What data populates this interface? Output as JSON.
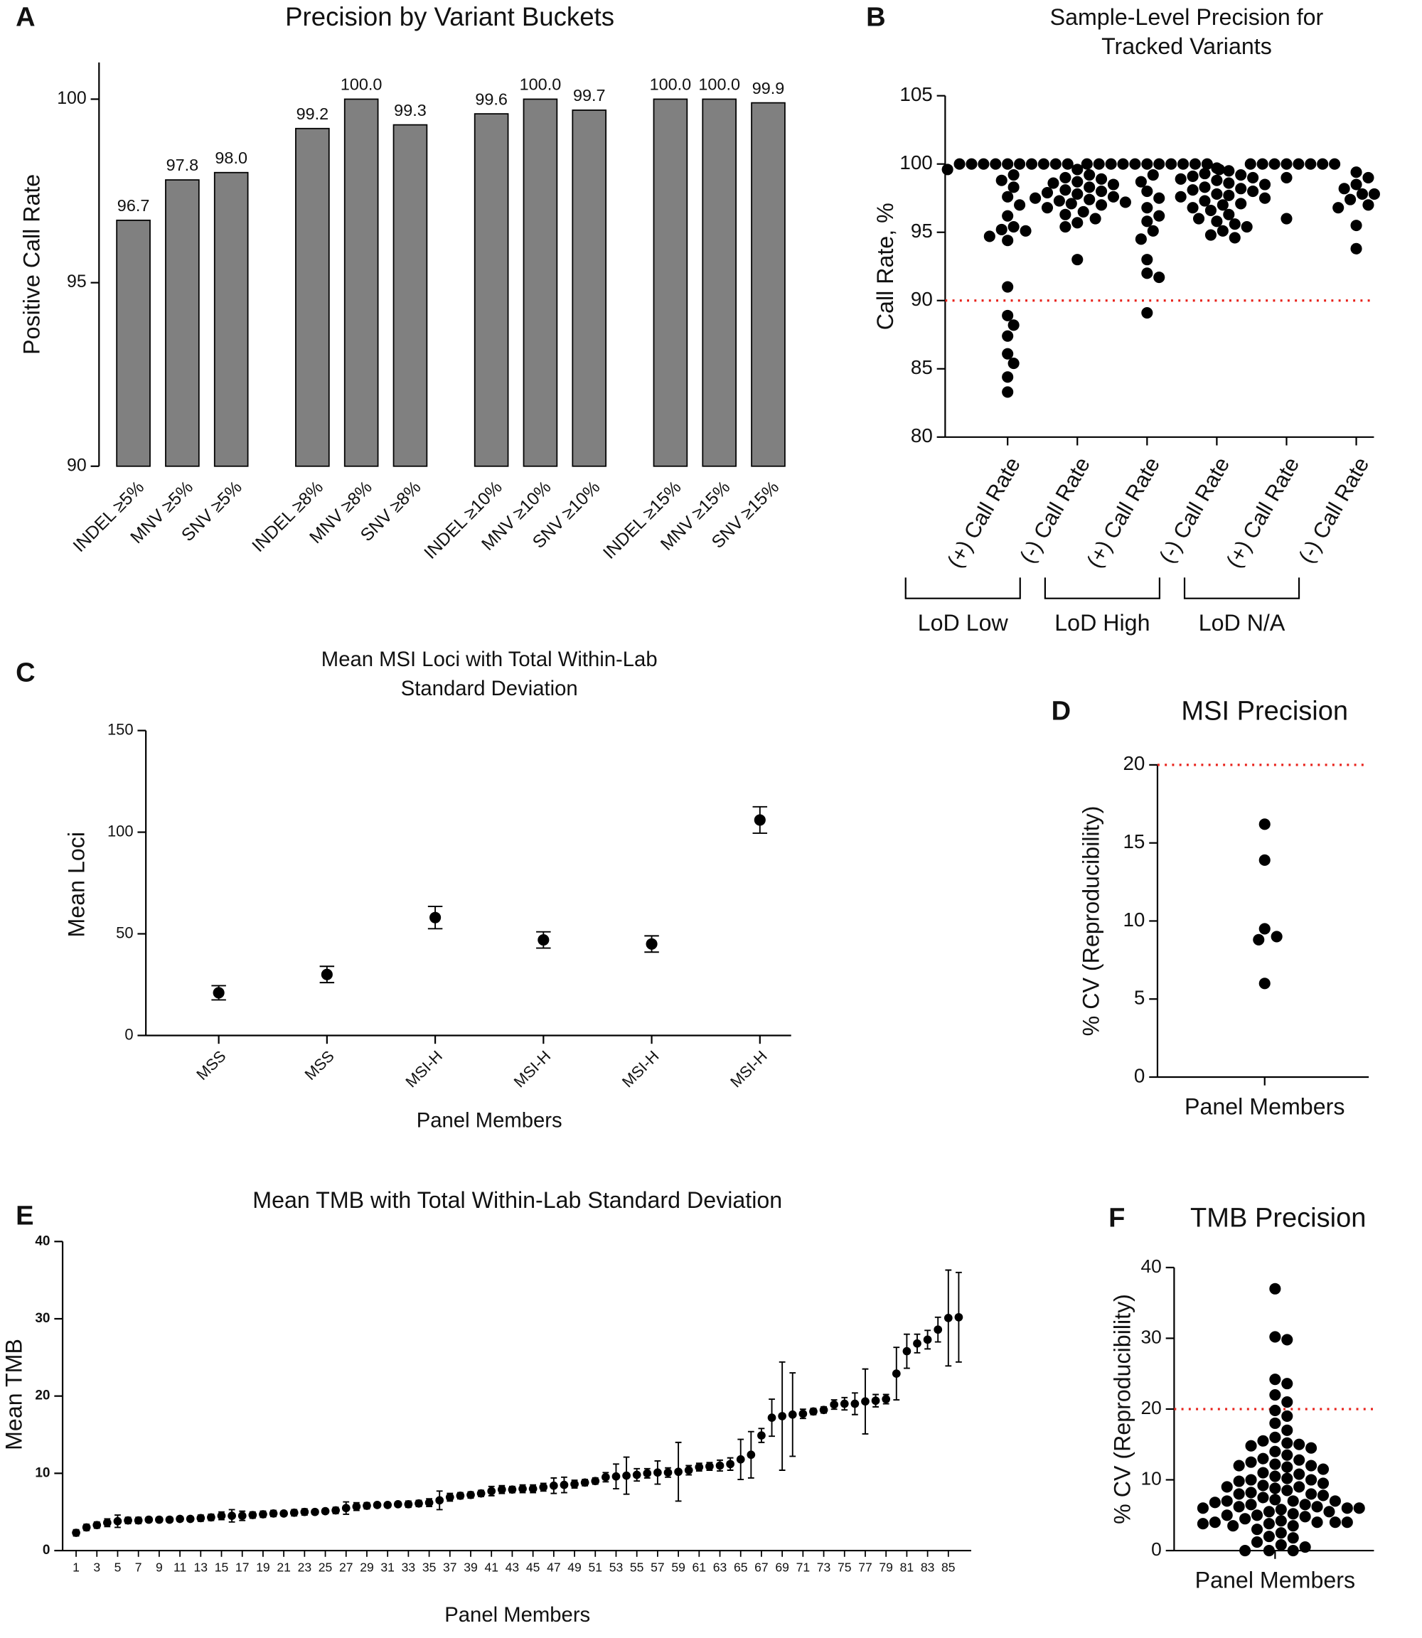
{
  "chart_data": [
    {
      "type": "bar",
      "panel": "A",
      "title": "Precision by Variant Buckets",
      "ylabel": "Positive Call  Rate",
      "categories": [
        "INDEL ≥5%",
        "MNV ≥5%",
        "SNV ≥5%",
        "INDEL ≥8%",
        "MNV ≥8%",
        "SNV ≥8%",
        "INDEL ≥10%",
        "MNV ≥10%",
        "SNV ≥10%",
        "INDEL ≥15%",
        "MNV ≥15%",
        "SNV ≥15%"
      ],
      "values": [
        96.7,
        97.8,
        98.0,
        99.2,
        100.0,
        99.3,
        99.6,
        100.0,
        99.7,
        100.0,
        100.0,
        99.9
      ],
      "value_labels": [
        "96.7",
        "97.8",
        "98.0",
        "99.2",
        "100.0",
        "99.3",
        "99.6",
        "100.0",
        "99.7",
        "100.0",
        "100.0",
        "99.9"
      ],
      "color": "#808080",
      "ylim": [
        90,
        101
      ],
      "yticks": [
        90,
        95,
        100
      ]
    },
    {
      "type": "strip",
      "panel": "B",
      "title": [
        "Sample-Level Precision for",
        "Tracked  Variants"
      ],
      "ylabel": "Call  Rate, %",
      "categories": [
        "(+) Call Rate",
        "(-) Call Rate",
        "(+) Call Rate",
        "(-) Call Rate",
        "(+) Call Rate",
        "(-) Call Rate"
      ],
      "groups": [
        "LoD Low",
        "LoD High",
        "LoD N/A"
      ],
      "values": [
        [
          100,
          100,
          100,
          100,
          100,
          100,
          100,
          100,
          100,
          100,
          99.6,
          99.2,
          98.8,
          98.3,
          97.6,
          97,
          96.2,
          95.4,
          95.2,
          95.1,
          94.7,
          94.4,
          91,
          88.9,
          88.2,
          87.4,
          86.1,
          85.4,
          84.4,
          83.3
        ],
        [
          99.6,
          99.2,
          99,
          98.9,
          98.7,
          98.6,
          98.5,
          98.3,
          98.1,
          98,
          97.9,
          97.8,
          97.6,
          97.5,
          97.4,
          97.3,
          97.2,
          97.1,
          97,
          96.8,
          96.5,
          96.3,
          96,
          95.7,
          95.4,
          93
        ],
        [
          100,
          100,
          100,
          100,
          100,
          100,
          100,
          100,
          100,
          100,
          100,
          99.6,
          99.2,
          98.7,
          98,
          97.5,
          96.8,
          96.2,
          95.8,
          95.1,
          94.5,
          93,
          92,
          91.7,
          89.1
        ],
        [
          99.7,
          99.5,
          99.3,
          99.2,
          99.1,
          99,
          98.9,
          98.8,
          98.6,
          98.5,
          98.3,
          98.2,
          98.1,
          98,
          97.8,
          97.7,
          97.6,
          97.5,
          97.3,
          97.1,
          97,
          96.8,
          96.6,
          96.3,
          96,
          95.8,
          95.6,
          95.4,
          95.1,
          94.8,
          94.6
        ],
        [
          100,
          100,
          100,
          100,
          100,
          100,
          100,
          100,
          99,
          96
        ],
        [
          99.4,
          99,
          98.5,
          98.2,
          97.8,
          97.8,
          97.4,
          97,
          96.8,
          95.5,
          93.8
        ]
      ],
      "color": "#000000",
      "hline": 90,
      "hline_color": "#e8221b",
      "ylim": [
        80,
        105
      ],
      "yticks": [
        80,
        85,
        90,
        95,
        100,
        105
      ]
    },
    {
      "type": "errorbar",
      "panel": "C",
      "title": [
        "Mean MSI Loci with Total Within-Lab",
        "Standard Deviation"
      ],
      "ylabel": "Mean Loci",
      "xlabel": "Panel Members",
      "categories": [
        "MSS",
        "MSS",
        "MSI-H",
        "MSI-H",
        "MSI-H",
        "MSI-H"
      ],
      "values": [
        21,
        30,
        58,
        47,
        45,
        106
      ],
      "errors": [
        3.5,
        4,
        5.5,
        4,
        4,
        6.5
      ],
      "color": "#000000",
      "ylim": [
        0,
        150
      ],
      "yticks": [
        0,
        50,
        100,
        150
      ]
    },
    {
      "type": "strip",
      "panel": "D",
      "title": "MSI Precision",
      "ylabel": "% CV (Reproducibility)",
      "categories": [
        "Panel Members"
      ],
      "values": [
        [
          16.2,
          13.9,
          9.5,
          9,
          8.8,
          6
        ]
      ],
      "color": "#000000",
      "hline": 20,
      "hline_color": "#e8221b",
      "ylim": [
        0,
        20
      ],
      "yticks": [
        0,
        5,
        10,
        15,
        20
      ]
    },
    {
      "type": "errorbar",
      "panel": "E",
      "title": "Mean TMB with Total Within-Lab Standard Deviation",
      "ylabel": "Mean TMB",
      "xlabel": "Panel Members",
      "x": [
        1,
        2,
        3,
        4,
        5,
        6,
        7,
        8,
        9,
        10,
        11,
        12,
        13,
        14,
        15,
        16,
        17,
        18,
        19,
        20,
        21,
        22,
        23,
        24,
        25,
        26,
        27,
        28,
        29,
        30,
        31,
        32,
        33,
        34,
        35,
        36,
        37,
        38,
        39,
        40,
        41,
        42,
        43,
        44,
        45,
        46,
        47,
        48,
        49,
        50,
        51,
        52,
        53,
        54,
        55,
        56,
        57,
        58,
        59,
        60,
        61,
        62,
        63,
        64,
        65,
        66,
        67,
        68,
        69,
        70,
        71,
        72,
        73,
        74,
        75,
        76,
        77,
        78,
        79,
        80,
        81,
        82,
        83,
        84,
        85,
        86
      ],
      "values": [
        2.3,
        3.0,
        3.3,
        3.6,
        3.8,
        3.9,
        3.9,
        4.0,
        4.0,
        4.0,
        4.1,
        4.1,
        4.2,
        4.3,
        4.5,
        4.5,
        4.5,
        4.6,
        4.7,
        4.8,
        4.8,
        4.9,
        5.0,
        5.0,
        5.1,
        5.2,
        5.5,
        5.7,
        5.8,
        5.9,
        5.9,
        6.0,
        6.0,
        6.1,
        6.2,
        6.5,
        6.9,
        7.1,
        7.2,
        7.4,
        7.7,
        7.9,
        7.9,
        8.0,
        8.0,
        8.2,
        8.4,
        8.5,
        8.6,
        8.8,
        9.0,
        9.5,
        9.6,
        9.7,
        9.8,
        10.0,
        10.1,
        10.1,
        10.2,
        10.4,
        10.8,
        10.9,
        11.0,
        11.2,
        11.8,
        12.4,
        14.9,
        17.2,
        17.4,
        17.6,
        17.7,
        18.0,
        18.2,
        18.9,
        19.0,
        19.0,
        19.3,
        19.4,
        19.6,
        22.9,
        25.8,
        26.8,
        27.3,
        28.6,
        30.1,
        30.2
      ],
      "errors": [
        0.4,
        0.4,
        0.4,
        0.5,
        0.8,
        0.4,
        0.4,
        0.3,
        0.3,
        0.3,
        0.3,
        0.3,
        0.4,
        0.4,
        0.5,
        0.8,
        0.6,
        0.4,
        0.4,
        0.4,
        0.3,
        0.4,
        0.4,
        0.3,
        0.3,
        0.4,
        0.8,
        0.5,
        0.4,
        0.3,
        0.3,
        0.3,
        0.4,
        0.4,
        0.5,
        1.2,
        0.5,
        0.4,
        0.4,
        0.4,
        0.6,
        0.5,
        0.4,
        0.5,
        0.5,
        0.5,
        1.0,
        1.0,
        0.5,
        0.4,
        0.4,
        0.6,
        1.6,
        2.4,
        0.8,
        0.6,
        1.5,
        0.6,
        3.8,
        0.6,
        0.5,
        0.5,
        0.7,
        0.8,
        2.6,
        3.0,
        0.9,
        2.4,
        7.0,
        5.4,
        0.6,
        0.4,
        0.4,
        0.6,
        0.8,
        1.4,
        4.2,
        0.8,
        0.6,
        3.4,
        2.2,
        1.2,
        1.2,
        1.6,
        6.2,
        5.8
      ],
      "color": "#000000",
      "xlim": [
        -0.3,
        87.2
      ],
      "xticks": [
        1,
        3,
        5,
        7,
        9,
        11,
        13,
        15,
        17,
        19,
        21,
        23,
        25,
        27,
        29,
        31,
        33,
        35,
        37,
        39,
        41,
        43,
        45,
        47,
        49,
        51,
        53,
        55,
        57,
        59,
        61,
        63,
        65,
        67,
        69,
        71,
        73,
        75,
        77,
        79,
        81,
        83,
        85
      ],
      "ylim": [
        0,
        40
      ],
      "yticks": [
        0,
        10,
        20,
        30,
        40
      ]
    },
    {
      "type": "strip",
      "panel": "F",
      "title": "TMB Precision",
      "ylabel": "% CV (Reproducibility)",
      "categories": [
        "Panel Members"
      ],
      "values": [
        [
          37,
          30.2,
          29.8,
          24.2,
          23.6,
          22,
          21,
          19.8,
          19,
          18,
          17,
          16,
          15.5,
          15.2,
          15,
          14.8,
          14.5,
          14,
          13.5,
          13,
          12.8,
          12.5,
          12.2,
          12,
          12,
          11.8,
          11.5,
          11,
          10.8,
          10.5,
          10.2,
          10,
          10,
          9.8,
          9.5,
          9.2,
          9,
          9,
          8.8,
          8.5,
          8.2,
          8,
          8,
          7.8,
          7.5,
          7.2,
          7,
          7,
          7,
          6.8,
          6.5,
          6.5,
          6.2,
          6.2,
          6,
          6,
          6,
          5.8,
          5.5,
          5.5,
          5.2,
          5,
          5,
          4.8,
          4.5,
          4.2,
          4,
          4,
          4,
          4,
          3.8,
          3.8,
          3.5,
          3.5,
          3,
          2.5,
          2,
          1.8,
          1.2,
          0.8,
          0.5,
          0,
          0,
          0
        ]
      ],
      "color": "#000000",
      "hline": 20,
      "hline_color": "#e8221b",
      "ylim": [
        0,
        40
      ],
      "yticks": [
        0,
        10,
        20,
        30,
        40
      ]
    }
  ]
}
